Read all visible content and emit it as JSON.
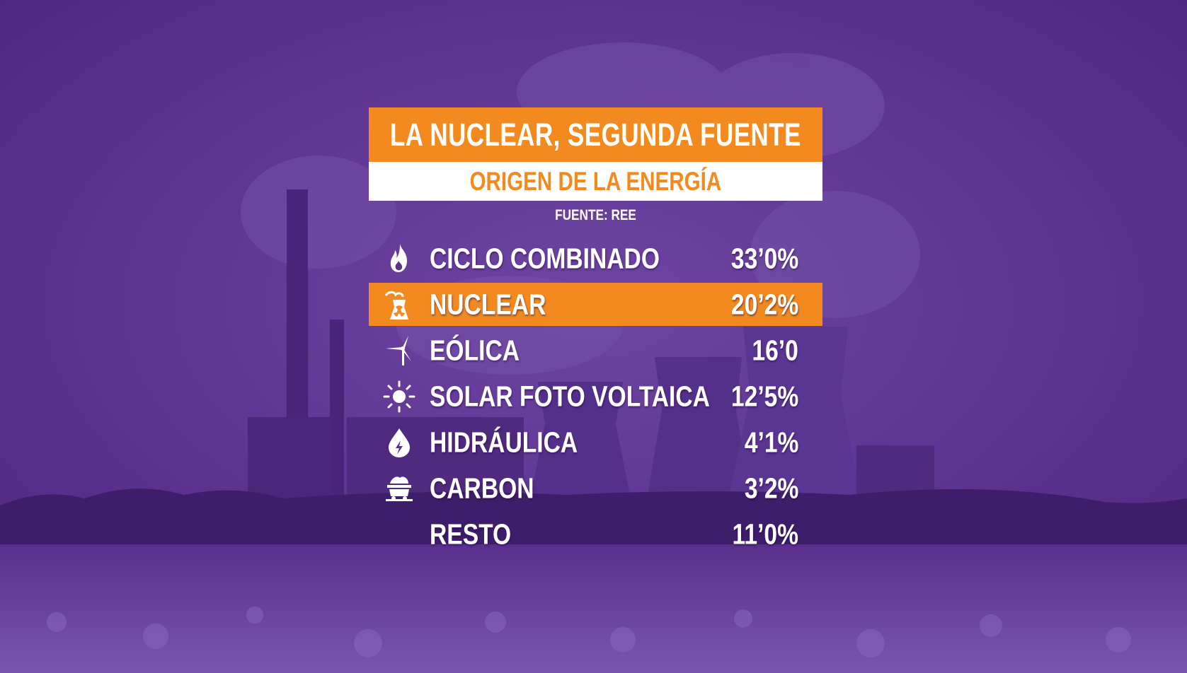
{
  "title": "LA NUCLEAR, SEGUNDA FUENTE",
  "subtitle": "ORIGEN DE LA ENERGÍA",
  "source": "FUENTE: REE",
  "colors": {
    "accent": "#f28a1f",
    "overlay": "#5a2f8e",
    "text": "#ffffff"
  },
  "rows": [
    {
      "icon": "flame-icon",
      "label": "CICLO COMBINADO",
      "value": "33’0%",
      "highlighted": false
    },
    {
      "icon": "nuclear-plant-icon",
      "label": "NUCLEAR",
      "value": "20’2%",
      "highlighted": true
    },
    {
      "icon": "wind-turbine-icon",
      "label": "EÓLICA",
      "value": "16’0",
      "highlighted": false
    },
    {
      "icon": "sun-icon",
      "label": "SOLAR FOTO VOLTAICA",
      "value": "12’5%",
      "highlighted": false
    },
    {
      "icon": "water-drop-icon",
      "label": "HIDRÁULICA",
      "value": "4’1%",
      "highlighted": false
    },
    {
      "icon": "coal-cart-icon",
      "label": "CARBON",
      "value": "3’2%",
      "highlighted": false
    },
    {
      "icon": "",
      "label": "RESTO",
      "value": "11’0%",
      "highlighted": false
    }
  ]
}
